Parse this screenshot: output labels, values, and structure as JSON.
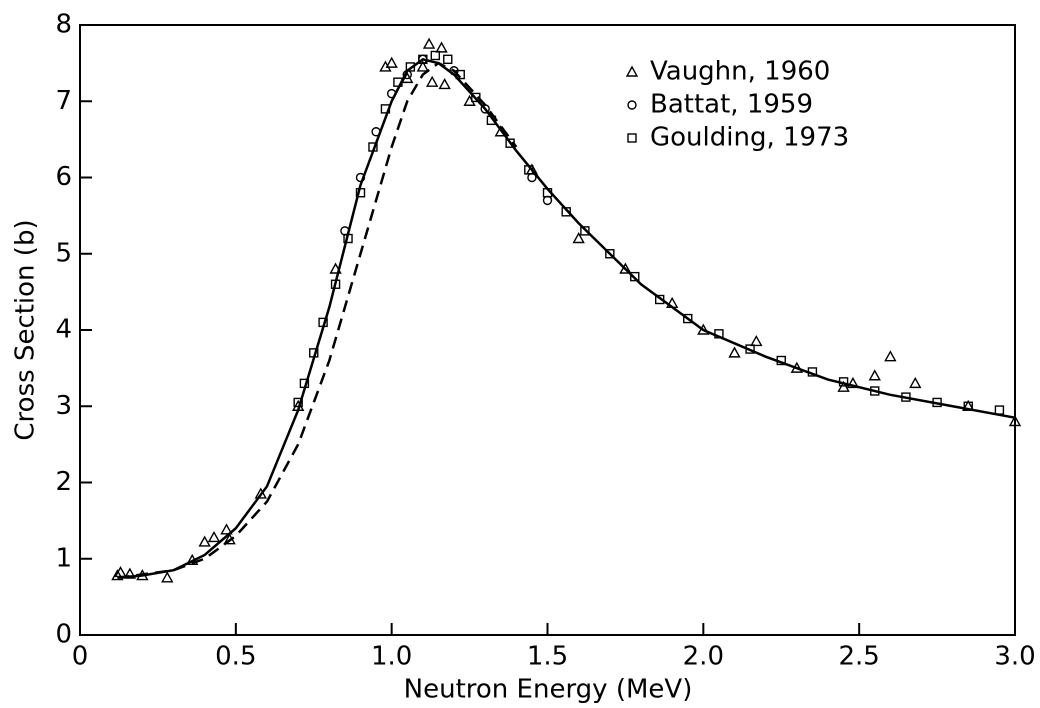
{
  "chart_data": {
    "type": "scatter",
    "xlabel": "Neutron Energy (MeV)",
    "ylabel": "Cross Section (b)",
    "xlim": [
      0,
      3
    ],
    "ylim": [
      0,
      8
    ],
    "xticks": [
      0,
      0.5,
      {
        "value": 1,
        "label": "1.0"
      },
      1.5,
      {
        "value": 2,
        "label": "2.0"
      },
      2.5,
      {
        "value": 3,
        "label": "3.0"
      }
    ],
    "yticks": [
      0,
      1,
      2,
      3,
      4,
      5,
      6,
      7,
      8
    ],
    "color": "#000000",
    "legend": "upper right",
    "series": [
      {
        "name": "Vaughn, 1960",
        "type": "scatter",
        "marker": "triangle",
        "x": [
          0.12,
          0.13,
          0.16,
          0.2,
          0.28,
          0.36,
          0.4,
          0.43,
          0.47,
          0.48,
          0.58,
          0.7,
          0.82,
          0.98,
          1.0,
          1.05,
          1.1,
          1.12,
          1.13,
          1.16,
          1.17,
          1.25,
          1.35,
          1.45,
          1.6,
          1.75,
          1.9,
          2.0,
          2.1,
          2.17,
          2.3,
          2.45,
          2.48,
          2.55,
          2.6,
          2.68,
          2.85,
          3.0
        ],
        "values": [
          0.78,
          0.82,
          0.8,
          0.78,
          0.75,
          0.98,
          1.22,
          1.28,
          1.38,
          1.25,
          1.85,
          3.0,
          4.8,
          7.45,
          7.5,
          7.3,
          7.45,
          7.75,
          7.25,
          7.7,
          7.22,
          7.0,
          6.6,
          6.1,
          5.2,
          4.8,
          4.35,
          4.0,
          3.7,
          3.85,
          3.5,
          3.25,
          3.3,
          3.4,
          3.65,
          3.3,
          3.0,
          2.8
        ]
      },
      {
        "name": "Battat, 1959",
        "type": "scatter",
        "marker": "circle",
        "x": [
          0.85,
          0.9,
          0.95,
          1.0,
          1.05,
          1.1,
          1.2,
          1.3,
          1.45,
          1.5
        ],
        "values": [
          5.3,
          6.0,
          6.6,
          7.1,
          7.35,
          7.55,
          7.4,
          6.9,
          6.0,
          5.7
        ]
      },
      {
        "name": "Goulding, 1973",
        "type": "scatter",
        "marker": "square",
        "x": [
          0.7,
          0.72,
          0.75,
          0.78,
          0.82,
          0.86,
          0.9,
          0.94,
          0.98,
          1.02,
          1.06,
          1.1,
          1.14,
          1.18,
          1.22,
          1.27,
          1.32,
          1.38,
          1.44,
          1.5,
          1.56,
          1.62,
          1.7,
          1.78,
          1.86,
          1.95,
          2.05,
          2.15,
          2.25,
          2.35,
          2.45,
          2.55,
          2.65,
          2.75,
          2.85,
          2.95
        ],
        "values": [
          3.05,
          3.3,
          3.7,
          4.1,
          4.6,
          5.2,
          5.8,
          6.4,
          6.9,
          7.25,
          7.45,
          7.55,
          7.6,
          7.55,
          7.35,
          7.05,
          6.75,
          6.45,
          6.1,
          5.8,
          5.55,
          5.3,
          5.0,
          4.7,
          4.4,
          4.15,
          3.95,
          3.75,
          3.6,
          3.45,
          3.32,
          3.2,
          3.12,
          3.05,
          3.0,
          2.95
        ]
      },
      {
        "type": "line",
        "style": "solid",
        "x": [
          0.12,
          0.2,
          0.3,
          0.4,
          0.5,
          0.6,
          0.7,
          0.8,
          0.9,
          1.0,
          1.05,
          1.1,
          1.15,
          1.2,
          1.3,
          1.4,
          1.5,
          1.6,
          1.7,
          1.8,
          1.9,
          2.0,
          2.2,
          2.4,
          2.6,
          2.8,
          3.0
        ],
        "values": [
          0.75,
          0.78,
          0.85,
          1.05,
          1.4,
          1.95,
          2.95,
          4.3,
          5.9,
          7.0,
          7.4,
          7.55,
          7.5,
          7.35,
          6.9,
          6.35,
          5.85,
          5.4,
          5.0,
          4.6,
          4.3,
          4.0,
          3.65,
          3.35,
          3.15,
          3.0,
          2.85
        ]
      },
      {
        "type": "line",
        "style": "dashed",
        "x": [
          0.12,
          0.3,
          0.4,
          0.5,
          0.6,
          0.7,
          0.8,
          0.9,
          1.0,
          1.05,
          1.1,
          1.15,
          1.2,
          1.3,
          1.4
        ],
        "values": [
          0.75,
          0.85,
          1.0,
          1.3,
          1.75,
          2.5,
          3.6,
          5.0,
          6.4,
          7.0,
          7.35,
          7.5,
          7.4,
          6.95,
          6.4
        ]
      }
    ]
  }
}
